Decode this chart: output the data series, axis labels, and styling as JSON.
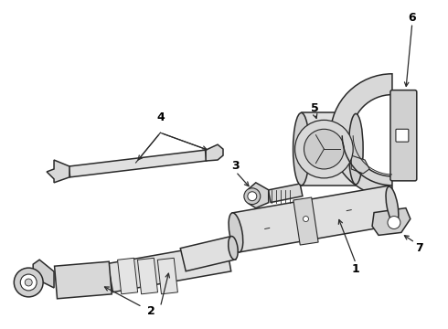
{
  "background_color": "#ffffff",
  "line_color": "#2a2a2a",
  "label_color": "#000000",
  "figsize": [
    4.9,
    3.6
  ],
  "dpi": 100
}
